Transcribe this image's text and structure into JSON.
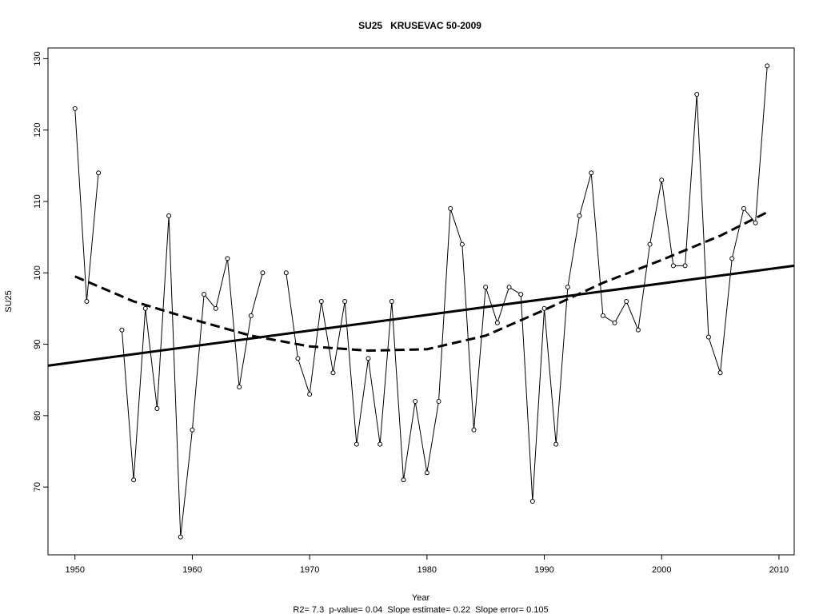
{
  "chart_data": {
    "type": "line",
    "title": "SU25   KRUSEVAC 50-2009",
    "xlabel": "Year",
    "ylabel": "SU25",
    "footnote": "R2= 7.3  p-value= 0.04  Slope estimate= 0.22  Slope error= 0.105",
    "xlim": [
      1947.7,
      2011.3
    ],
    "ylim": [
      60.5,
      131.5
    ],
    "x_ticks": [
      1950,
      1960,
      1970,
      1980,
      1990,
      2000,
      2010
    ],
    "y_ticks": [
      70,
      80,
      90,
      100,
      110,
      120,
      130
    ],
    "grid": false,
    "legend": "none",
    "series": [
      {
        "style": "line-with-open-circles",
        "x": [
          1950,
          1951,
          1952,
          1953,
          1954,
          1955,
          1956,
          1957,
          1958,
          1959,
          1960,
          1961,
          1962,
          1963,
          1964,
          1965,
          1966,
          1967,
          1968,
          1969,
          1970,
          1971,
          1972,
          1973,
          1974,
          1975,
          1976,
          1977,
          1978,
          1979,
          1980,
          1981,
          1982,
          1983,
          1984,
          1985,
          1986,
          1987,
          1988,
          1989,
          1990,
          1991,
          1992,
          1993,
          1994,
          1995,
          1996,
          1997,
          1998,
          1999,
          2000,
          2001,
          2002,
          2003,
          2004,
          2005,
          2006,
          2007,
          2008,
          2009
        ],
        "values": [
          123,
          96,
          114,
          null,
          92,
          71,
          95,
          81,
          108,
          63,
          78,
          97,
          95,
          102,
          84,
          94,
          100,
          null,
          100,
          88,
          83,
          96,
          86,
          96,
          76,
          88,
          76,
          96,
          71,
          82,
          72,
          82,
          109,
          104,
          78,
          98,
          93,
          98,
          97,
          68,
          95,
          76,
          98,
          108,
          114,
          94,
          93,
          96,
          92,
          104,
          113,
          101,
          101,
          125,
          91,
          86,
          102,
          109,
          107,
          129
        ]
      },
      {
        "style": "solid-thick",
        "x": [
          1947.7,
          2011.3
        ],
        "values": [
          87.0,
          101.0
        ]
      },
      {
        "style": "dashed-thick",
        "x": [
          1950,
          1955,
          1960,
          1965,
          1970,
          1975,
          1980,
          1985,
          1990,
          1995,
          2000,
          2005,
          2009
        ],
        "values": [
          99.5,
          96.0,
          93.5,
          91.2,
          89.7,
          89.1,
          89.3,
          91.2,
          94.8,
          98.6,
          101.8,
          105.2,
          108.5
        ]
      }
    ]
  }
}
